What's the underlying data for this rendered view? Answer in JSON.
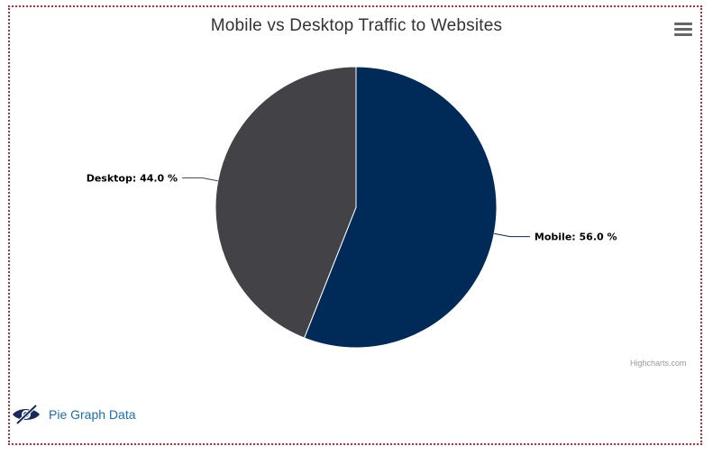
{
  "chart_data": {
    "type": "pie",
    "title": "Mobile vs Desktop Traffic to Websites",
    "slices": [
      {
        "name": "Mobile",
        "value": 56.0,
        "color": "#002b59"
      },
      {
        "name": "Desktop",
        "value": 44.0,
        "color": "#434347"
      }
    ],
    "data_labels": [
      "Mobile: 56.0 %",
      "Desktop: 44.0 %"
    ]
  },
  "credits": "Highcharts.com",
  "toggle": {
    "label": "Pie Graph Data",
    "icon": "eye-slash-icon",
    "icon_color": "#1b2a5e",
    "label_color": "#1a6fb5"
  },
  "menu": {
    "icon": "hamburger-icon"
  },
  "frame_color": "#d0202a"
}
